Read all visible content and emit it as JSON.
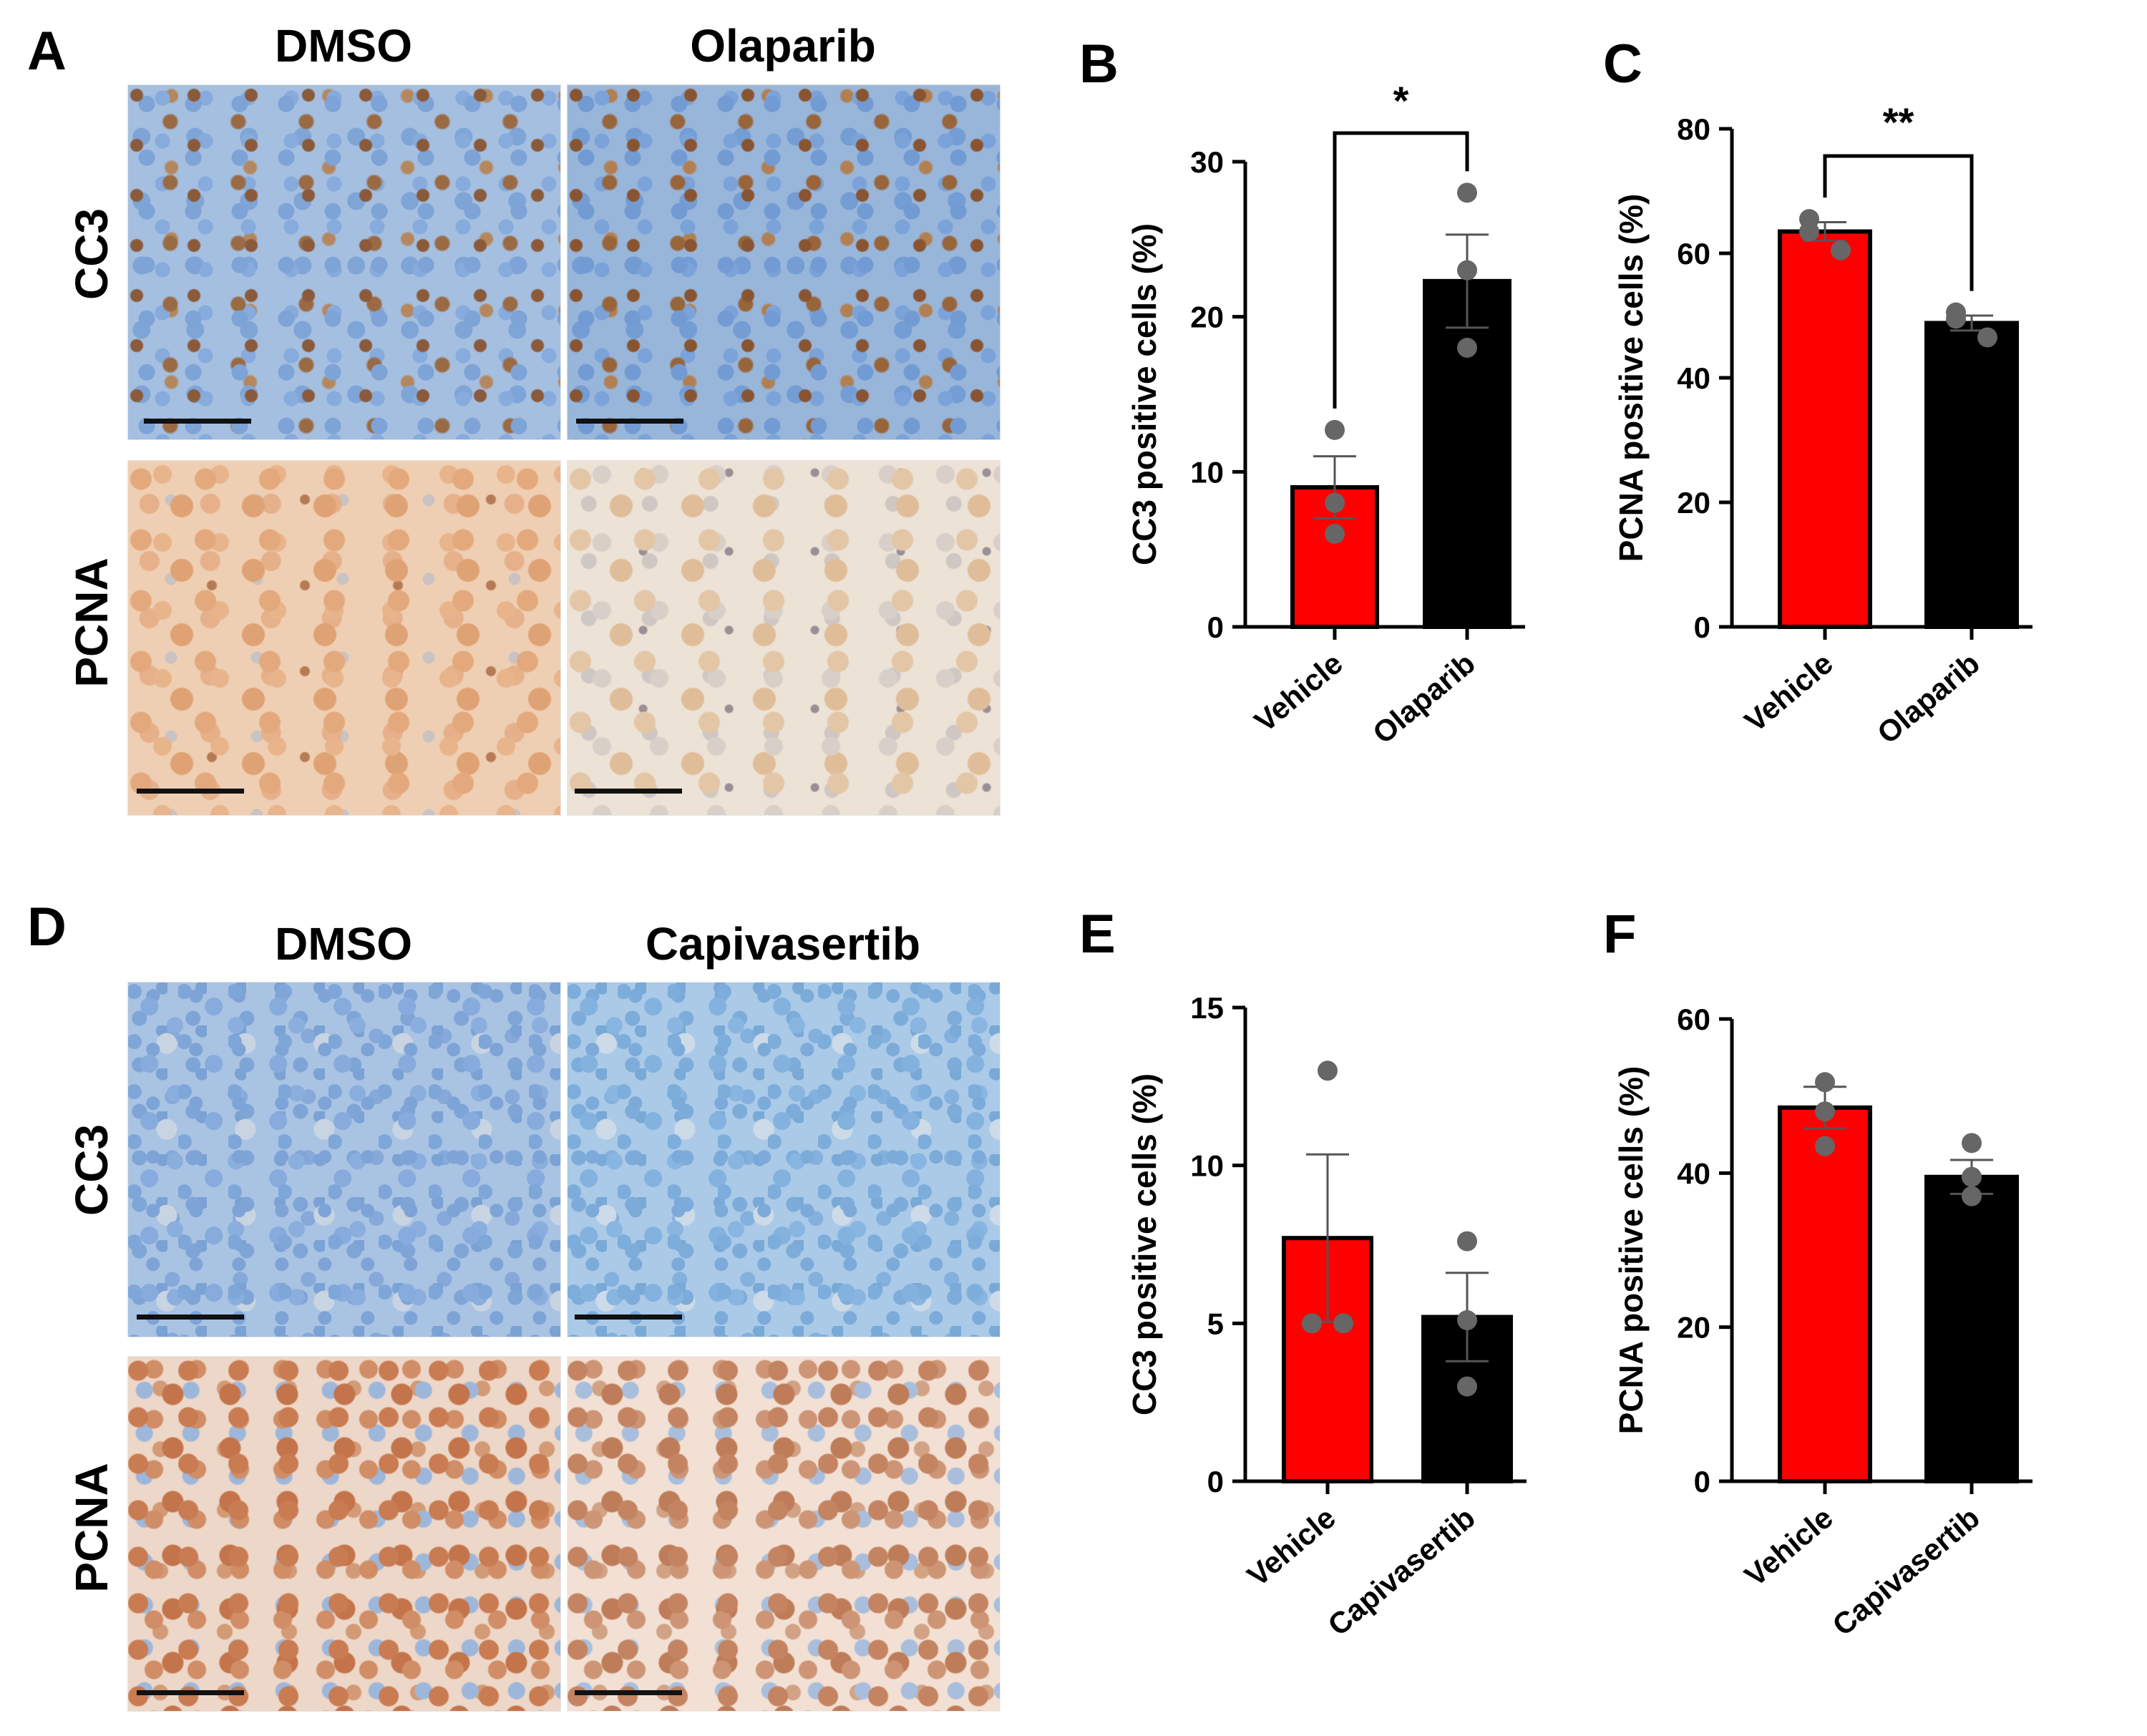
{
  "panels": {
    "A": {
      "letter": "A",
      "columns": [
        "DMSO",
        "Olaparib"
      ],
      "rows": [
        "CC3",
        "PCNA"
      ]
    },
    "D": {
      "letter": "D",
      "columns": [
        "DMSO",
        "Capivasertib"
      ],
      "rows": [
        "CC3",
        "PCNA"
      ]
    }
  },
  "colors": {
    "vehicle_bar": "#ff0000",
    "treatment_bar": "#000000",
    "points": "#666666",
    "error_bar": "#555555"
  },
  "chart_data": [
    {
      "panel": "B",
      "type": "bar",
      "categories": [
        "Vehicle",
        "Olaparib"
      ],
      "values": [
        9.0,
        22.3
      ],
      "sem": [
        2.0,
        3.0
      ],
      "points": [
        [
          12.7,
          8.0,
          6.0
        ],
        [
          28.0,
          23.0,
          18.0
        ]
      ],
      "ylabel": "CC3 positive cells (%)",
      "ylim": [
        0,
        30
      ],
      "yticks": [
        0,
        10,
        20,
        30
      ],
      "significance": "*"
    },
    {
      "panel": "C",
      "type": "bar",
      "categories": [
        "Vehicle",
        "Olaparib"
      ],
      "values": [
        63.5,
        48.8
      ],
      "sem": [
        1.5,
        1.2
      ],
      "points": [
        [
          65.5,
          63.5,
          60.5
        ],
        [
          50.5,
          49.5,
          46.5
        ]
      ],
      "ylabel": "PCNA positive cells (%)",
      "ylim": [
        0,
        80
      ],
      "yticks": [
        0,
        20,
        40,
        60,
        80
      ],
      "significance": "**"
    },
    {
      "panel": "E",
      "type": "bar",
      "categories": [
        "Vehicle",
        "Capivasertib"
      ],
      "values": [
        7.7,
        5.2
      ],
      "sem": [
        2.65,
        1.4
      ],
      "points": [
        [
          13.0,
          5.0,
          5.0
        ],
        [
          7.6,
          5.1,
          3.0
        ]
      ],
      "ylabel": "CC3 positive cells (%)",
      "ylim": [
        0,
        15
      ],
      "yticks": [
        0,
        5,
        10,
        15
      ],
      "significance": ""
    },
    {
      "panel": "F",
      "type": "bar",
      "categories": [
        "Vehicle",
        "Capivasertib"
      ],
      "values": [
        48.5,
        39.5
      ],
      "sem": [
        2.7,
        2.2
      ],
      "points": [
        [
          51.8,
          48.0,
          43.5
        ],
        [
          43.9,
          39.5,
          37.0
        ]
      ],
      "ylabel": "PCNA positive cells (%)",
      "ylim": [
        0,
        60
      ],
      "yticks": [
        0,
        20,
        40,
        60
      ],
      "significance": ""
    }
  ]
}
